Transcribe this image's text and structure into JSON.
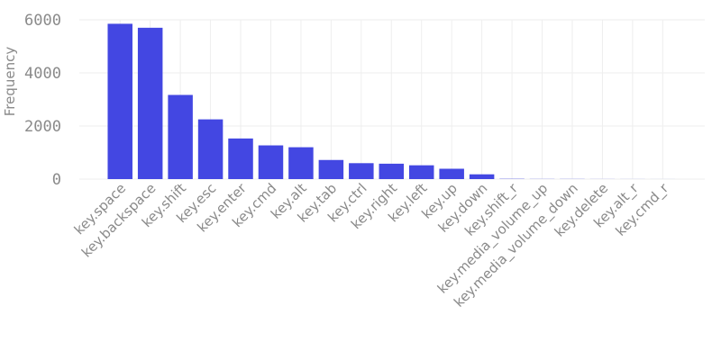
{
  "chart_data": {
    "type": "bar",
    "title": "",
    "xlabel": "",
    "ylabel": "Frequency",
    "ylim": [
      0,
      6000
    ],
    "yticks": [
      0,
      2000,
      4000,
      6000
    ],
    "grid": true,
    "bar_color": "#4347e2",
    "categories": [
      "key.space",
      "key.backspace",
      "key.shift",
      "key.esc",
      "key.enter",
      "key.cmd",
      "key.alt",
      "key.tab",
      "key.ctrl",
      "key.right",
      "key.left",
      "key.up",
      "key.down",
      "key.shift_r",
      "key.media_volume_up",
      "key.media_volume_down",
      "key.delete",
      "key.alt_r",
      "key.cmd_r"
    ],
    "values": [
      5850,
      5700,
      3170,
      2250,
      1530,
      1270,
      1200,
      720,
      600,
      580,
      520,
      390,
      180,
      10,
      5,
      5,
      3,
      2,
      1
    ]
  }
}
